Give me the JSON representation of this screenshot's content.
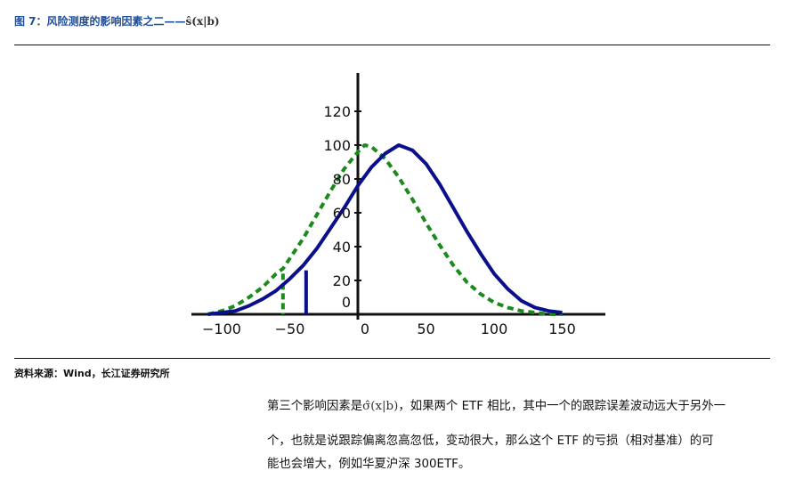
{
  "figure": {
    "title_prefix": "图 7：风险测度的影响因素之二——",
    "title_formula": "ŝ(x|b)"
  },
  "source": "资料来源：Wind，长江证券研究所",
  "paragraph": {
    "line1_prefix": "第三个影响因素是",
    "line1_formula": "σ̂(x|b)",
    "line1_suffix": "，如果两个 ETF 相比，其中一个的跟踪误差波动远大于另外一",
    "line2": "个，也就是说跟踪偏离忽高忽低，变动很大，那么这个 ETF 的亏损（相对基准）的可",
    "line3": "能也会增大，例如华夏沪深 300ETF。"
  },
  "chart_data": {
    "type": "line",
    "xlim": [
      -100,
      150
    ],
    "ylim": [
      0,
      120
    ],
    "x_ticks": [
      "−100",
      "−50",
      "0",
      "50",
      "100",
      "150"
    ],
    "y_ticks": [
      "120",
      "100",
      "80",
      "60",
      "40",
      "20",
      "0"
    ],
    "grid": false,
    "colors": {
      "solid": "#0a0f8c",
      "dashed": "#1a8a1a"
    },
    "series": [
      {
        "style": "dashed",
        "color": "#1a8a1a",
        "x": [
          -110,
          -100,
          -90,
          -80,
          -70,
          -60,
          -55,
          -50,
          -40,
          -30,
          -20,
          -10,
          0,
          5,
          10,
          20,
          30,
          40,
          50,
          60,
          70,
          80,
          90,
          100,
          110,
          120,
          130,
          140,
          150
        ],
        "y": [
          0,
          2,
          5,
          10,
          16,
          24,
          27,
          33,
          45,
          59,
          73,
          86,
          96,
          100,
          99,
          92,
          81,
          68,
          54,
          41,
          29,
          19,
          12,
          7,
          4,
          2,
          1,
          0,
          0
        ],
        "cutoff": {
          "x": -55,
          "y": 24
        }
      },
      {
        "style": "solid",
        "color": "#0a0f8c",
        "x": [
          -110,
          -100,
          -90,
          -80,
          -70,
          -60,
          -50,
          -40,
          -30,
          -20,
          -10,
          0,
          10,
          20,
          30,
          40,
          50,
          60,
          70,
          80,
          90,
          100,
          110,
          120,
          130,
          140,
          150
        ],
        "y": [
          0,
          1,
          2,
          5,
          9,
          14,
          21,
          29,
          39,
          51,
          63,
          76,
          87,
          95,
          100,
          97,
          89,
          77,
          63,
          49,
          36,
          24,
          15,
          8,
          4,
          2,
          1
        ],
        "cutoff": {
          "x": -38,
          "y": 26
        }
      }
    ]
  }
}
